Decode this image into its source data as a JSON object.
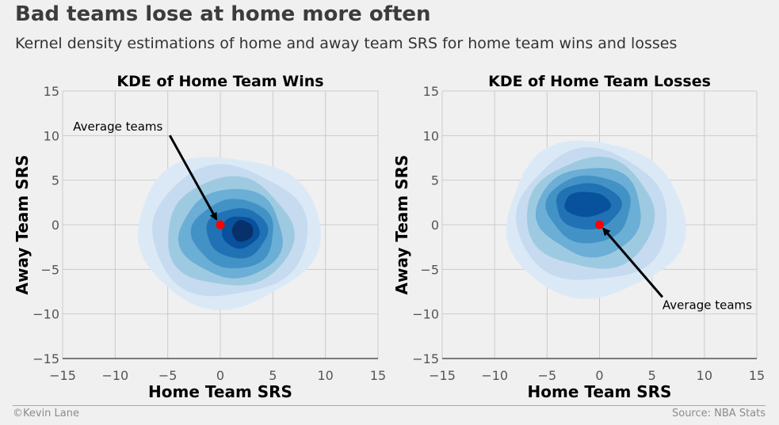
{
  "title": "Bad teams lose at home more often",
  "subtitle": "Kernel density estimations of home and away team SRS for home team wins and losses",
  "footer": {
    "credit": "©Kevin Lane",
    "source": "Source: NBA Stats"
  },
  "colors": {
    "background": "#f0f0f0",
    "grid": "#cbcbcb",
    "point": "#ff0000",
    "palette": "Blues"
  },
  "chart_data": [
    {
      "type": "kde",
      "title": "KDE of Home Team Wins",
      "xlabel": "Home Team SRS",
      "ylabel": "Away Team SRS",
      "xlim": [
        -15,
        15
      ],
      "ylim": [
        -15,
        15
      ],
      "xticks": [
        -15,
        -10,
        -5,
        0,
        5,
        10,
        15
      ],
      "yticks": [
        -15,
        -10,
        -5,
        0,
        5,
        10,
        15
      ],
      "tick_labels": [
        "−15",
        "−10",
        "−5",
        "0",
        "5",
        "10",
        "15"
      ],
      "grid": true,
      "density_levels": [
        {
          "level": 1,
          "center": [
            0.7,
            -0.7
          ],
          "rx": 8.7,
          "ry": 8.5
        },
        {
          "level": 2,
          "center": [
            0.8,
            -0.8
          ],
          "rx": 7.4,
          "ry": 7.3
        },
        {
          "level": 3,
          "center": [
            0.9,
            -0.9
          ],
          "rx": 6.0,
          "ry": 6.1
        },
        {
          "level": 4,
          "center": [
            1.1,
            -1.0
          ],
          "rx": 4.9,
          "ry": 5.0
        },
        {
          "level": 5,
          "center": [
            1.3,
            -1.0
          ],
          "rx": 3.9,
          "ry": 3.9
        },
        {
          "level": 6,
          "center": [
            1.6,
            -0.9
          ],
          "rx": 2.9,
          "ry": 2.8
        },
        {
          "level": 7,
          "center": [
            1.9,
            -0.8
          ],
          "rx": 1.8,
          "ry": 1.8
        },
        {
          "level": 8,
          "center": [
            2.1,
            -0.7
          ],
          "rx": 1.0,
          "ry": 1.2
        }
      ],
      "point": {
        "label": "Average teams",
        "x": 0,
        "y": 0
      },
      "annotation": {
        "text": "Average teams",
        "x": -14,
        "y": 11
      }
    },
    {
      "type": "kde",
      "title": "KDE of Home Team Losses",
      "xlabel": "Home Team SRS",
      "ylabel": "Away Team SRS",
      "xlim": [
        -15,
        15
      ],
      "ylim": [
        -15,
        15
      ],
      "xticks": [
        -15,
        -10,
        -5,
        0,
        5,
        10,
        15
      ],
      "yticks": [
        -15,
        -10,
        -5,
        0,
        5,
        10,
        15
      ],
      "tick_labels": [
        "−15",
        "−10",
        "−5",
        "0",
        "5",
        "10",
        "15"
      ],
      "grid": true,
      "density_levels": [
        {
          "level": 1,
          "center": [
            -0.5,
            0.6
          ],
          "rx": 8.5,
          "ry": 8.8
        },
        {
          "level": 2,
          "center": [
            -0.7,
            0.9
          ],
          "rx": 7.2,
          "ry": 7.4
        },
        {
          "level": 3,
          "center": [
            -0.8,
            1.2
          ],
          "rx": 6.1,
          "ry": 6.2
        },
        {
          "level": 4,
          "center": [
            -0.9,
            1.5
          ],
          "rx": 5.0,
          "ry": 5.0
        },
        {
          "level": 5,
          "center": [
            -1.0,
            1.8
          ],
          "rx": 4.0,
          "ry": 3.8
        },
        {
          "level": 6,
          "center": [
            -1.1,
            2.1
          ],
          "rx": 3.1,
          "ry": 2.6
        },
        {
          "level": 7,
          "center": [
            -1.2,
            2.3
          ],
          "rx": 2.2,
          "ry": 1.4
        }
      ],
      "point": {
        "label": "Average teams",
        "x": 0,
        "y": 0
      },
      "annotation": {
        "text": "Average teams",
        "x": 6,
        "y": -9
      }
    }
  ]
}
